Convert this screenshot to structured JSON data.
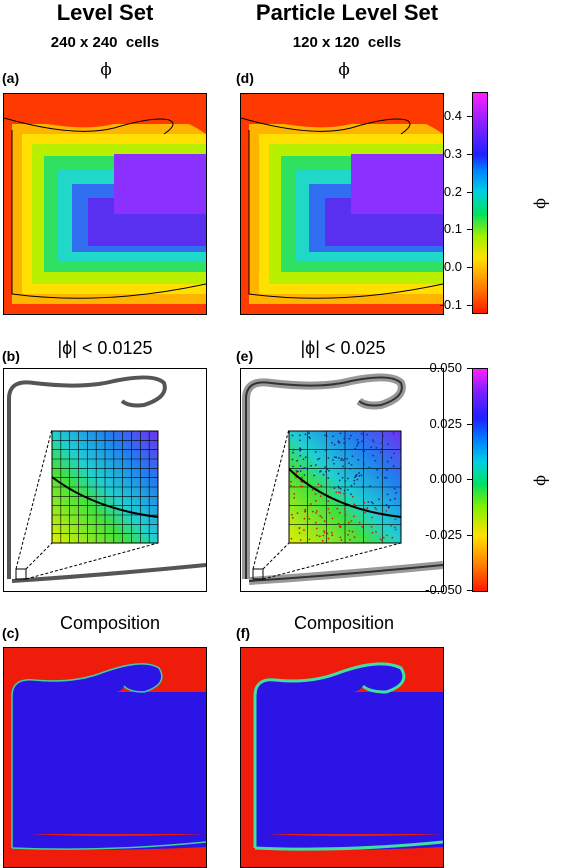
{
  "columns": {
    "left": {
      "title": "Level Set",
      "subtitle": "240 x 240  cells"
    },
    "right": {
      "title": "Particle Level Set",
      "subtitle": "120 x 120  cells"
    }
  },
  "panels": {
    "a": {
      "label": "(a)",
      "title": "ϕ"
    },
    "b": {
      "label": "(b)",
      "title": "|ϕ| < 0.0125"
    },
    "c": {
      "label": "(c)",
      "title": "Composition"
    },
    "d": {
      "label": "(d)",
      "title": "ϕ"
    },
    "e": {
      "label": "(e)",
      "title": "|ϕ| < 0.025"
    },
    "f": {
      "label": "(f)",
      "title": "Composition"
    }
  },
  "colorbars": {
    "top": {
      "label": "ϕ",
      "ticks": [
        "0.4",
        "0.3",
        "0.2",
        "0.1",
        "0.0",
        "-0.1"
      ]
    },
    "middle": {
      "label": "ϕ",
      "ticks": [
        "0.050",
        "0.025",
        "0.000",
        "-0.025",
        "-0.050"
      ]
    }
  },
  "colors": {
    "composition_fill": "#ef1b0b",
    "composition_body": "#2c14e6",
    "contour": "#000000"
  }
}
